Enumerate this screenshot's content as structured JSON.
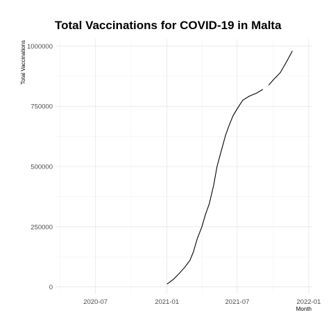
{
  "chart_data": {
    "type": "line",
    "title": "Total Vaccinations for COVID-19 in Malta",
    "xlabel": "Month",
    "ylabel": "Total Vaccinations",
    "x_tick_labels": [
      "2020-07",
      "2021-01",
      "2021-07",
      "2022-01"
    ],
    "y_tick_labels": [
      "0",
      "250000",
      "500000",
      "750000",
      "1000000"
    ],
    "xlim": [
      "2020-03-20",
      "2022-01-10"
    ],
    "ylim": [
      -30000,
      1030000
    ],
    "grid": true,
    "legend": "none",
    "series": [
      {
        "color": "#000000",
        "segments": [
          [
            [
              "2021-01-01",
              12000
            ],
            [
              "2021-01-10",
              22000
            ],
            [
              "2021-01-20",
              35000
            ],
            [
              "2021-02-01",
              55000
            ],
            [
              "2021-02-15",
              80000
            ],
            [
              "2021-03-01",
              110000
            ],
            [
              "2021-03-10",
              145000
            ],
            [
              "2021-03-20",
              200000
            ],
            [
              "2021-04-01",
              250000
            ],
            [
              "2021-04-10",
              300000
            ],
            [
              "2021-04-20",
              345000
            ],
            [
              "2021-05-01",
              420000
            ],
            [
              "2021-05-10",
              500000
            ],
            [
              "2021-05-20",
              560000
            ],
            [
              "2021-06-01",
              630000
            ],
            [
              "2021-06-10",
              670000
            ],
            [
              "2021-06-20",
              710000
            ],
            [
              "2021-07-01",
              740000
            ],
            [
              "2021-07-15",
              775000
            ],
            [
              "2021-08-01",
              792000
            ],
            [
              "2021-08-20",
              805000
            ],
            [
              "2021-09-05",
              820000
            ]
          ],
          [
            [
              "2021-09-20",
              838000
            ],
            [
              "2021-10-05",
              865000
            ],
            [
              "2021-10-20",
              890000
            ],
            [
              "2021-11-05",
              935000
            ],
            [
              "2021-11-20",
              980000
            ]
          ]
        ]
      }
    ]
  }
}
